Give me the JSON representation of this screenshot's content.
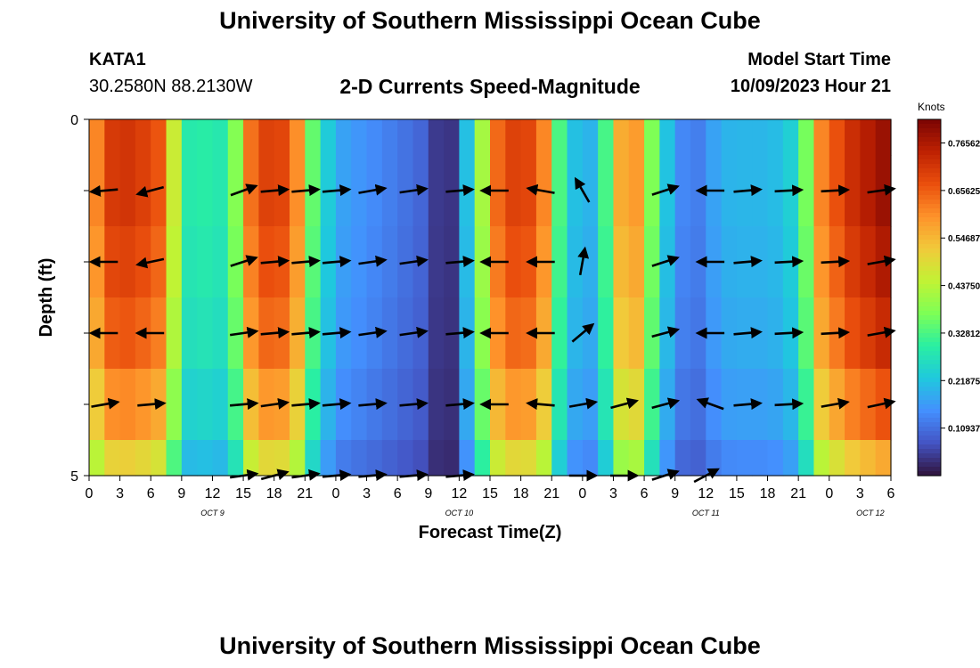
{
  "page": {
    "title_top": "University of Southern Mississippi Ocean Cube",
    "title_bottom": "University of Southern Mississippi Ocean Cube"
  },
  "header": {
    "station_id": "KATA1",
    "location": "30.2580N  88.2130W",
    "plot_title": "2-D Currents Speed-Magnitude",
    "model_start_label": "Model Start Time",
    "model_start_value": "10/09/2023 Hour 21"
  },
  "colors": {
    "palette": [
      "#30123b",
      "#4454c4",
      "#4490fe",
      "#1fc8de",
      "#29efa2",
      "#7dff56",
      "#c1f334",
      "#f1ca3a",
      "#fe922a",
      "#ea4f0d",
      "#be2102",
      "#7a0403"
    ],
    "arrow": "#000000",
    "axis": "#000000"
  },
  "chart_data": {
    "type": "heatmap",
    "title": "2-D Currents Speed-Magnitude",
    "xlabel": "Forecast Time(Z)",
    "ylabel": "Depth (ft)",
    "x_hours": [
      0,
      3,
      6,
      9,
      12,
      15,
      18,
      21,
      24,
      27,
      30,
      33,
      36,
      39,
      42,
      45,
      48,
      51,
      54,
      57,
      60,
      63,
      66,
      69,
      72,
      75,
      78,
      81
    ],
    "x_tick_labels": [
      "0",
      "3",
      "6",
      "9",
      "12",
      "15",
      "18",
      "21",
      "0",
      "3",
      "6",
      "9",
      "12",
      "15",
      "18",
      "21",
      "0",
      "3",
      "6",
      "9",
      "12",
      "15",
      "18",
      "21",
      "0",
      "3",
      "6"
    ],
    "x_tick_hours": [
      0,
      3,
      6,
      9,
      12,
      15,
      18,
      21,
      24,
      27,
      30,
      33,
      36,
      39,
      42,
      45,
      48,
      51,
      54,
      57,
      60,
      63,
      66,
      69,
      72,
      75,
      78
    ],
    "date_labels": [
      {
        "label": "OCT 9",
        "hour": 12
      },
      {
        "label": "OCT 10",
        "hour": 36
      },
      {
        "label": "OCT 11",
        "hour": 60
      },
      {
        "label": "OCT 12",
        "hour": 76
      }
    ],
    "xlim": [
      0,
      78
    ],
    "depth_levels": [
      0,
      1,
      2,
      3,
      4,
      5
    ],
    "ylim": [
      0,
      5
    ],
    "y_tick_labels": [
      {
        "label": "0",
        "depth": 0
      },
      {
        "label": "5",
        "depth": 5
      }
    ],
    "colorbar": {
      "label": "Knots",
      "range": [
        0.0,
        0.82
      ],
      "tick_labels": [
        "0.76562",
        "0.65625",
        "0.54687",
        "0.43750",
        "0.32812",
        "0.21875",
        "0.10937"
      ],
      "tick_values": [
        0.76562,
        0.65625,
        0.546875,
        0.4375,
        0.328125,
        0.21875,
        0.109375
      ]
    },
    "speed_profile_by_hour": [
      [
        0,
        0.4
      ],
      [
        1,
        0.68
      ],
      [
        3,
        0.72
      ],
      [
        5,
        0.7
      ],
      [
        7,
        0.66
      ],
      [
        8.5,
        0.42
      ],
      [
        10,
        0.26
      ],
      [
        11.5,
        0.3
      ],
      [
        13,
        0.28
      ],
      [
        14.5,
        0.4
      ],
      [
        16,
        0.68
      ],
      [
        18,
        0.7
      ],
      [
        20,
        0.66
      ],
      [
        21,
        0.42
      ],
      [
        22.5,
        0.28
      ],
      [
        24,
        0.18
      ],
      [
        27,
        0.15
      ],
      [
        30,
        0.12
      ],
      [
        33,
        0.09
      ],
      [
        34,
        0.03
      ],
      [
        35,
        0.02
      ],
      [
        36,
        0.1
      ],
      [
        37,
        0.25
      ],
      [
        38.5,
        0.45
      ],
      [
        40,
        0.68
      ],
      [
        42,
        0.7
      ],
      [
        44,
        0.66
      ],
      [
        45.5,
        0.35
      ],
      [
        47,
        0.22
      ],
      [
        48.5,
        0.18
      ],
      [
        50,
        0.28
      ],
      [
        51.5,
        0.55
      ],
      [
        53,
        0.62
      ],
      [
        54.5,
        0.4
      ],
      [
        56,
        0.24
      ],
      [
        57,
        0.15
      ],
      [
        59,
        0.12
      ],
      [
        61,
        0.18
      ],
      [
        62.5,
        0.2
      ],
      [
        64,
        0.2
      ],
      [
        66,
        0.2
      ],
      [
        68,
        0.22
      ],
      [
        69.5,
        0.32
      ],
      [
        71,
        0.6
      ],
      [
        74,
        0.72
      ],
      [
        76,
        0.76
      ],
      [
        78,
        0.8
      ]
    ],
    "depth_speed_factor": [
      1.0,
      1.0,
      0.97,
      0.93,
      0.85,
      0.72
    ],
    "vectors": [
      {
        "hour": 1.5,
        "depth": 1,
        "angle": 185
      },
      {
        "hour": 6,
        "depth": 1,
        "angle": 195
      },
      {
        "hour": 15,
        "depth": 1,
        "angle": 20
      },
      {
        "hour": 18,
        "depth": 1,
        "angle": 5
      },
      {
        "hour": 21,
        "depth": 1,
        "angle": 5
      },
      {
        "hour": 24,
        "depth": 1,
        "angle": 5
      },
      {
        "hour": 27.5,
        "depth": 1,
        "angle": 10
      },
      {
        "hour": 31.5,
        "depth": 1,
        "angle": 8
      },
      {
        "hour": 36,
        "depth": 1,
        "angle": 5
      },
      {
        "hour": 39.5,
        "depth": 1,
        "angle": 180
      },
      {
        "hour": 44,
        "depth": 1,
        "angle": 170
      },
      {
        "hour": 48,
        "depth": 1,
        "angle": 120
      },
      {
        "hour": 56,
        "depth": 1,
        "angle": 18
      },
      {
        "hour": 60.5,
        "depth": 1,
        "angle": 180
      },
      {
        "hour": 64,
        "depth": 1,
        "angle": 5
      },
      {
        "hour": 68,
        "depth": 1,
        "angle": 3
      },
      {
        "hour": 72.5,
        "depth": 1,
        "angle": 3
      },
      {
        "hour": 77,
        "depth": 1,
        "angle": 8
      },
      {
        "hour": 1.5,
        "depth": 2,
        "angle": 180
      },
      {
        "hour": 6,
        "depth": 2,
        "angle": 192
      },
      {
        "hour": 15,
        "depth": 2,
        "angle": 18
      },
      {
        "hour": 18,
        "depth": 2,
        "angle": 5
      },
      {
        "hour": 21,
        "depth": 2,
        "angle": 5
      },
      {
        "hour": 24,
        "depth": 2,
        "angle": 5
      },
      {
        "hour": 27.5,
        "depth": 2,
        "angle": 8
      },
      {
        "hour": 31.5,
        "depth": 2,
        "angle": 8
      },
      {
        "hour": 36,
        "depth": 2,
        "angle": 5
      },
      {
        "hour": 39.5,
        "depth": 2,
        "angle": 180
      },
      {
        "hour": 44,
        "depth": 2,
        "angle": 180
      },
      {
        "hour": 48,
        "depth": 2,
        "angle": 80
      },
      {
        "hour": 56,
        "depth": 2,
        "angle": 18
      },
      {
        "hour": 60.5,
        "depth": 2,
        "angle": 180
      },
      {
        "hour": 64,
        "depth": 2,
        "angle": 5
      },
      {
        "hour": 68,
        "depth": 2,
        "angle": 3
      },
      {
        "hour": 72.5,
        "depth": 2,
        "angle": 3
      },
      {
        "hour": 77,
        "depth": 2,
        "angle": 10
      },
      {
        "hour": 1.5,
        "depth": 3,
        "angle": 180
      },
      {
        "hour": 6,
        "depth": 3,
        "angle": 180
      },
      {
        "hour": 15,
        "depth": 3,
        "angle": 8
      },
      {
        "hour": 18,
        "depth": 3,
        "angle": 5
      },
      {
        "hour": 21,
        "depth": 3,
        "angle": 5
      },
      {
        "hour": 24,
        "depth": 3,
        "angle": 5
      },
      {
        "hour": 27.5,
        "depth": 3,
        "angle": 8
      },
      {
        "hour": 31.5,
        "depth": 3,
        "angle": 8
      },
      {
        "hour": 36,
        "depth": 3,
        "angle": 5
      },
      {
        "hour": 39.5,
        "depth": 3,
        "angle": 180
      },
      {
        "hour": 44,
        "depth": 3,
        "angle": 180
      },
      {
        "hour": 48,
        "depth": 3,
        "angle": 40
      },
      {
        "hour": 56,
        "depth": 3,
        "angle": 15
      },
      {
        "hour": 60.5,
        "depth": 3,
        "angle": 180
      },
      {
        "hour": 64,
        "depth": 3,
        "angle": 5
      },
      {
        "hour": 68,
        "depth": 3,
        "angle": 3
      },
      {
        "hour": 72.5,
        "depth": 3,
        "angle": 3
      },
      {
        "hour": 77,
        "depth": 3,
        "angle": 10
      },
      {
        "hour": 1.5,
        "depth": 4,
        "angle": 10
      },
      {
        "hour": 6,
        "depth": 4,
        "angle": 5
      },
      {
        "hour": 15,
        "depth": 4,
        "angle": 5
      },
      {
        "hour": 18,
        "depth": 4,
        "angle": 8
      },
      {
        "hour": 21,
        "depth": 4,
        "angle": 5
      },
      {
        "hour": 24,
        "depth": 4,
        "angle": 5
      },
      {
        "hour": 27.5,
        "depth": 4,
        "angle": 5
      },
      {
        "hour": 31.5,
        "depth": 4,
        "angle": 5
      },
      {
        "hour": 36,
        "depth": 4,
        "angle": 5
      },
      {
        "hour": 39.5,
        "depth": 4,
        "angle": 180
      },
      {
        "hour": 44,
        "depth": 4,
        "angle": 175
      },
      {
        "hour": 48,
        "depth": 4,
        "angle": 10
      },
      {
        "hour": 52,
        "depth": 4,
        "angle": 15
      },
      {
        "hour": 56,
        "depth": 4,
        "angle": 15
      },
      {
        "hour": 60.5,
        "depth": 4,
        "angle": 160
      },
      {
        "hour": 64,
        "depth": 4,
        "angle": 5
      },
      {
        "hour": 68,
        "depth": 4,
        "angle": 3
      },
      {
        "hour": 72.5,
        "depth": 4,
        "angle": 10
      },
      {
        "hour": 77,
        "depth": 4,
        "angle": 12
      },
      {
        "hour": 15,
        "depth": 5,
        "angle": 8
      },
      {
        "hour": 18,
        "depth": 5,
        "angle": 15
      },
      {
        "hour": 21,
        "depth": 5,
        "angle": 8
      },
      {
        "hour": 24,
        "depth": 5,
        "angle": 5
      },
      {
        "hour": 27.5,
        "depth": 5,
        "angle": 5
      },
      {
        "hour": 31.5,
        "depth": 5,
        "angle": 5
      },
      {
        "hour": 36,
        "depth": 5,
        "angle": 5
      },
      {
        "hour": 48,
        "depth": 5,
        "angle": 0
      },
      {
        "hour": 52,
        "depth": 5,
        "angle": 0
      },
      {
        "hour": 56,
        "depth": 5,
        "angle": 18
      },
      {
        "hour": 60,
        "depth": 5,
        "angle": 28
      }
    ]
  }
}
